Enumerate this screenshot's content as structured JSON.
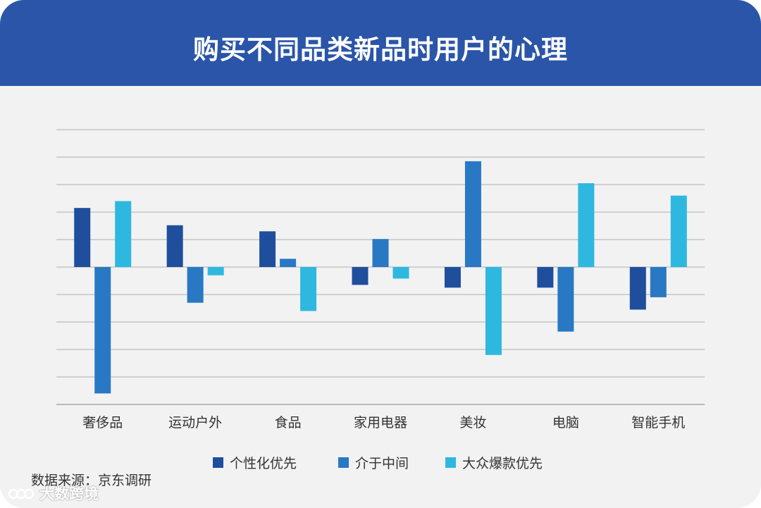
{
  "title": "购买不同品类新品时用户的心理",
  "source": "数据来源：京东调研",
  "watermark": "大数跨境",
  "colors": {
    "header": "#2a55a8",
    "background": "#f2f2f2",
    "grid": "#bdbdbd",
    "axis": "#a6a6a6"
  },
  "chart_data": {
    "type": "bar",
    "title": "购买不同品类新品时用户的心理",
    "xlabel": "",
    "ylabel": "",
    "ylim": [
      -5,
      5
    ],
    "y_tick_labels_shown": false,
    "grid": true,
    "legend_position": "bottom",
    "categories": [
      "奢侈品",
      "运动户外",
      "食品",
      "家用电器",
      "美妆",
      "电脑",
      "智能手机"
    ],
    "series": [
      {
        "name": "个性化优先",
        "color": "#1f4e9c",
        "values": [
          2.15,
          1.52,
          1.3,
          -0.65,
          -0.75,
          -0.75,
          -1.55
        ]
      },
      {
        "name": "介于中间",
        "color": "#2878c4",
        "values": [
          -4.6,
          -1.3,
          0.3,
          1.02,
          3.85,
          -2.35,
          -1.1
        ]
      },
      {
        "name": "大众爆款优先",
        "color": "#2eb8e0",
        "values": [
          2.4,
          -0.3,
          -1.6,
          -0.42,
          -3.2,
          3.05,
          2.6
        ]
      }
    ]
  }
}
